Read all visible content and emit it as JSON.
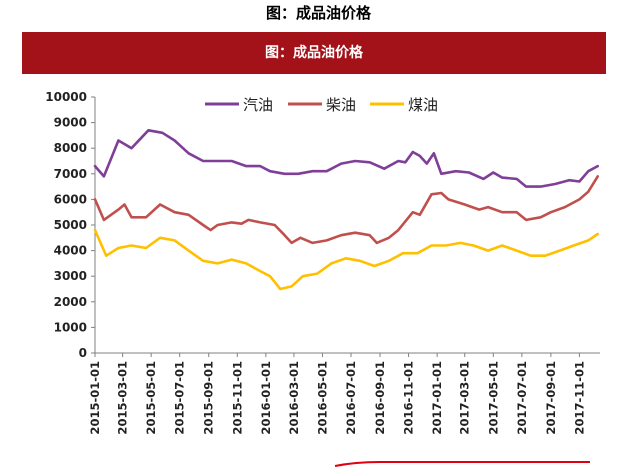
{
  "header": {
    "title": "图：成品油价格",
    "banner_title": "图：成品油价格"
  },
  "colors": {
    "banner": "#a31218",
    "gasoline": "#7f3f98",
    "diesel": "#c0504d",
    "coal_oil": "#ffc000",
    "annotation": "#e0000f"
  },
  "chart_data": {
    "type": "line",
    "title": "图：成品油价格",
    "xlabel": "",
    "ylabel": "",
    "ylim": [
      0,
      10000
    ],
    "yticks": [
      0,
      1000,
      2000,
      3000,
      4000,
      5000,
      6000,
      7000,
      8000,
      9000,
      10000
    ],
    "xlim": [
      "2015-01-01",
      "2017-12-15"
    ],
    "xticks": [
      "2015-01-01",
      "2015-03-01",
      "2015-05-01",
      "2015-07-01",
      "2015-09-01",
      "2015-11-01",
      "2016-01-01",
      "2016-03-01",
      "2016-05-01",
      "2016-07-01",
      "2016-09-01",
      "2016-11-01",
      "2017-01-01",
      "2017-03-01",
      "2017-05-01",
      "2017-07-01",
      "2017-09-01",
      "2017-11-01"
    ],
    "grid": false,
    "legend": "top",
    "series": [
      {
        "name": "汽油",
        "color": "#7f3f98",
        "points": [
          [
            "2015-01-01",
            7300
          ],
          [
            "2015-01-20",
            6900
          ],
          [
            "2015-02-20",
            8300
          ],
          [
            "2015-03-20",
            8000
          ],
          [
            "2015-04-25",
            8700
          ],
          [
            "2015-05-25",
            8600
          ],
          [
            "2015-06-20",
            8300
          ],
          [
            "2015-07-20",
            7800
          ],
          [
            "2015-08-20",
            7500
          ],
          [
            "2015-09-20",
            7500
          ],
          [
            "2015-10-20",
            7500
          ],
          [
            "2015-11-20",
            7300
          ],
          [
            "2015-12-20",
            7300
          ],
          [
            "2016-01-10",
            7100
          ],
          [
            "2016-02-10",
            7000
          ],
          [
            "2016-03-10",
            7000
          ],
          [
            "2016-04-10",
            7100
          ],
          [
            "2016-05-10",
            7100
          ],
          [
            "2016-06-10",
            7400
          ],
          [
            "2016-07-10",
            7500
          ],
          [
            "2016-08-10",
            7450
          ],
          [
            "2016-09-10",
            7200
          ],
          [
            "2016-10-10",
            7500
          ],
          [
            "2016-10-25",
            7450
          ],
          [
            "2016-11-10",
            7850
          ],
          [
            "2016-11-25",
            7700
          ],
          [
            "2016-12-10",
            7400
          ],
          [
            "2016-12-25",
            7800
          ],
          [
            "2017-01-10",
            7000
          ],
          [
            "2017-02-10",
            7100
          ],
          [
            "2017-03-10",
            7050
          ],
          [
            "2017-04-10",
            6800
          ],
          [
            "2017-05-01",
            7050
          ],
          [
            "2017-05-20",
            6850
          ],
          [
            "2017-06-20",
            6800
          ],
          [
            "2017-07-10",
            6500
          ],
          [
            "2017-08-10",
            6500
          ],
          [
            "2017-09-10",
            6600
          ],
          [
            "2017-10-10",
            6750
          ],
          [
            "2017-11-01",
            6700
          ],
          [
            "2017-11-20",
            7100
          ],
          [
            "2017-12-10",
            7300
          ]
        ]
      },
      {
        "name": "柴油",
        "color": "#c0504d",
        "points": [
          [
            "2015-01-01",
            6000
          ],
          [
            "2015-01-20",
            5200
          ],
          [
            "2015-02-20",
            5600
          ],
          [
            "2015-03-05",
            5800
          ],
          [
            "2015-03-20",
            5300
          ],
          [
            "2015-04-20",
            5300
          ],
          [
            "2015-05-20",
            5800
          ],
          [
            "2015-06-20",
            5500
          ],
          [
            "2015-07-20",
            5400
          ],
          [
            "2015-08-20",
            5000
          ],
          [
            "2015-09-05",
            4800
          ],
          [
            "2015-09-20",
            5000
          ],
          [
            "2015-10-20",
            5100
          ],
          [
            "2015-11-10",
            5050
          ],
          [
            "2015-11-25",
            5200
          ],
          [
            "2015-12-20",
            5100
          ],
          [
            "2016-01-20",
            5000
          ],
          [
            "2016-02-10",
            4600
          ],
          [
            "2016-02-25",
            4300
          ],
          [
            "2016-03-15",
            4500
          ],
          [
            "2016-04-10",
            4300
          ],
          [
            "2016-05-10",
            4400
          ],
          [
            "2016-06-10",
            4600
          ],
          [
            "2016-07-10",
            4700
          ],
          [
            "2016-08-10",
            4600
          ],
          [
            "2016-08-25",
            4300
          ],
          [
            "2016-09-20",
            4500
          ],
          [
            "2016-10-10",
            4800
          ],
          [
            "2016-11-10",
            5500
          ],
          [
            "2016-11-25",
            5400
          ],
          [
            "2016-12-20",
            6200
          ],
          [
            "2017-01-10",
            6250
          ],
          [
            "2017-01-25",
            6000
          ],
          [
            "2017-03-01",
            5800
          ],
          [
            "2017-04-01",
            5600
          ],
          [
            "2017-04-20",
            5700
          ],
          [
            "2017-05-20",
            5500
          ],
          [
            "2017-06-20",
            5500
          ],
          [
            "2017-07-10",
            5200
          ],
          [
            "2017-08-10",
            5300
          ],
          [
            "2017-09-01",
            5500
          ],
          [
            "2017-10-01",
            5700
          ],
          [
            "2017-11-01",
            6000
          ],
          [
            "2017-11-20",
            6300
          ],
          [
            "2017-12-10",
            6900
          ]
        ]
      },
      {
        "name": "煤油",
        "color": "#ffc000",
        "points": [
          [
            "2015-01-01",
            4800
          ],
          [
            "2015-01-25",
            3800
          ],
          [
            "2015-02-20",
            4100
          ],
          [
            "2015-03-20",
            4200
          ],
          [
            "2015-04-20",
            4100
          ],
          [
            "2015-05-20",
            4500
          ],
          [
            "2015-06-20",
            4400
          ],
          [
            "2015-07-20",
            4000
          ],
          [
            "2015-08-20",
            3600
          ],
          [
            "2015-09-20",
            3500
          ],
          [
            "2015-10-20",
            3650
          ],
          [
            "2015-11-20",
            3500
          ],
          [
            "2015-12-20",
            3200
          ],
          [
            "2016-01-10",
            3000
          ],
          [
            "2016-02-01",
            2500
          ],
          [
            "2016-02-25",
            2600
          ],
          [
            "2016-03-20",
            3000
          ],
          [
            "2016-04-20",
            3100
          ],
          [
            "2016-05-20",
            3500
          ],
          [
            "2016-06-20",
            3700
          ],
          [
            "2016-07-20",
            3600
          ],
          [
            "2016-08-20",
            3400
          ],
          [
            "2016-09-20",
            3600
          ],
          [
            "2016-10-20",
            3900
          ],
          [
            "2016-11-20",
            3900
          ],
          [
            "2016-12-20",
            4200
          ],
          [
            "2017-01-20",
            4200
          ],
          [
            "2017-02-20",
            4300
          ],
          [
            "2017-03-20",
            4200
          ],
          [
            "2017-04-20",
            4000
          ],
          [
            "2017-05-20",
            4200
          ],
          [
            "2017-06-20",
            4000
          ],
          [
            "2017-07-20",
            3800
          ],
          [
            "2017-08-20",
            3800
          ],
          [
            "2017-09-20",
            4000
          ],
          [
            "2017-10-20",
            4200
          ],
          [
            "2017-11-20",
            4400
          ],
          [
            "2017-12-10",
            4650
          ]
        ]
      }
    ]
  }
}
